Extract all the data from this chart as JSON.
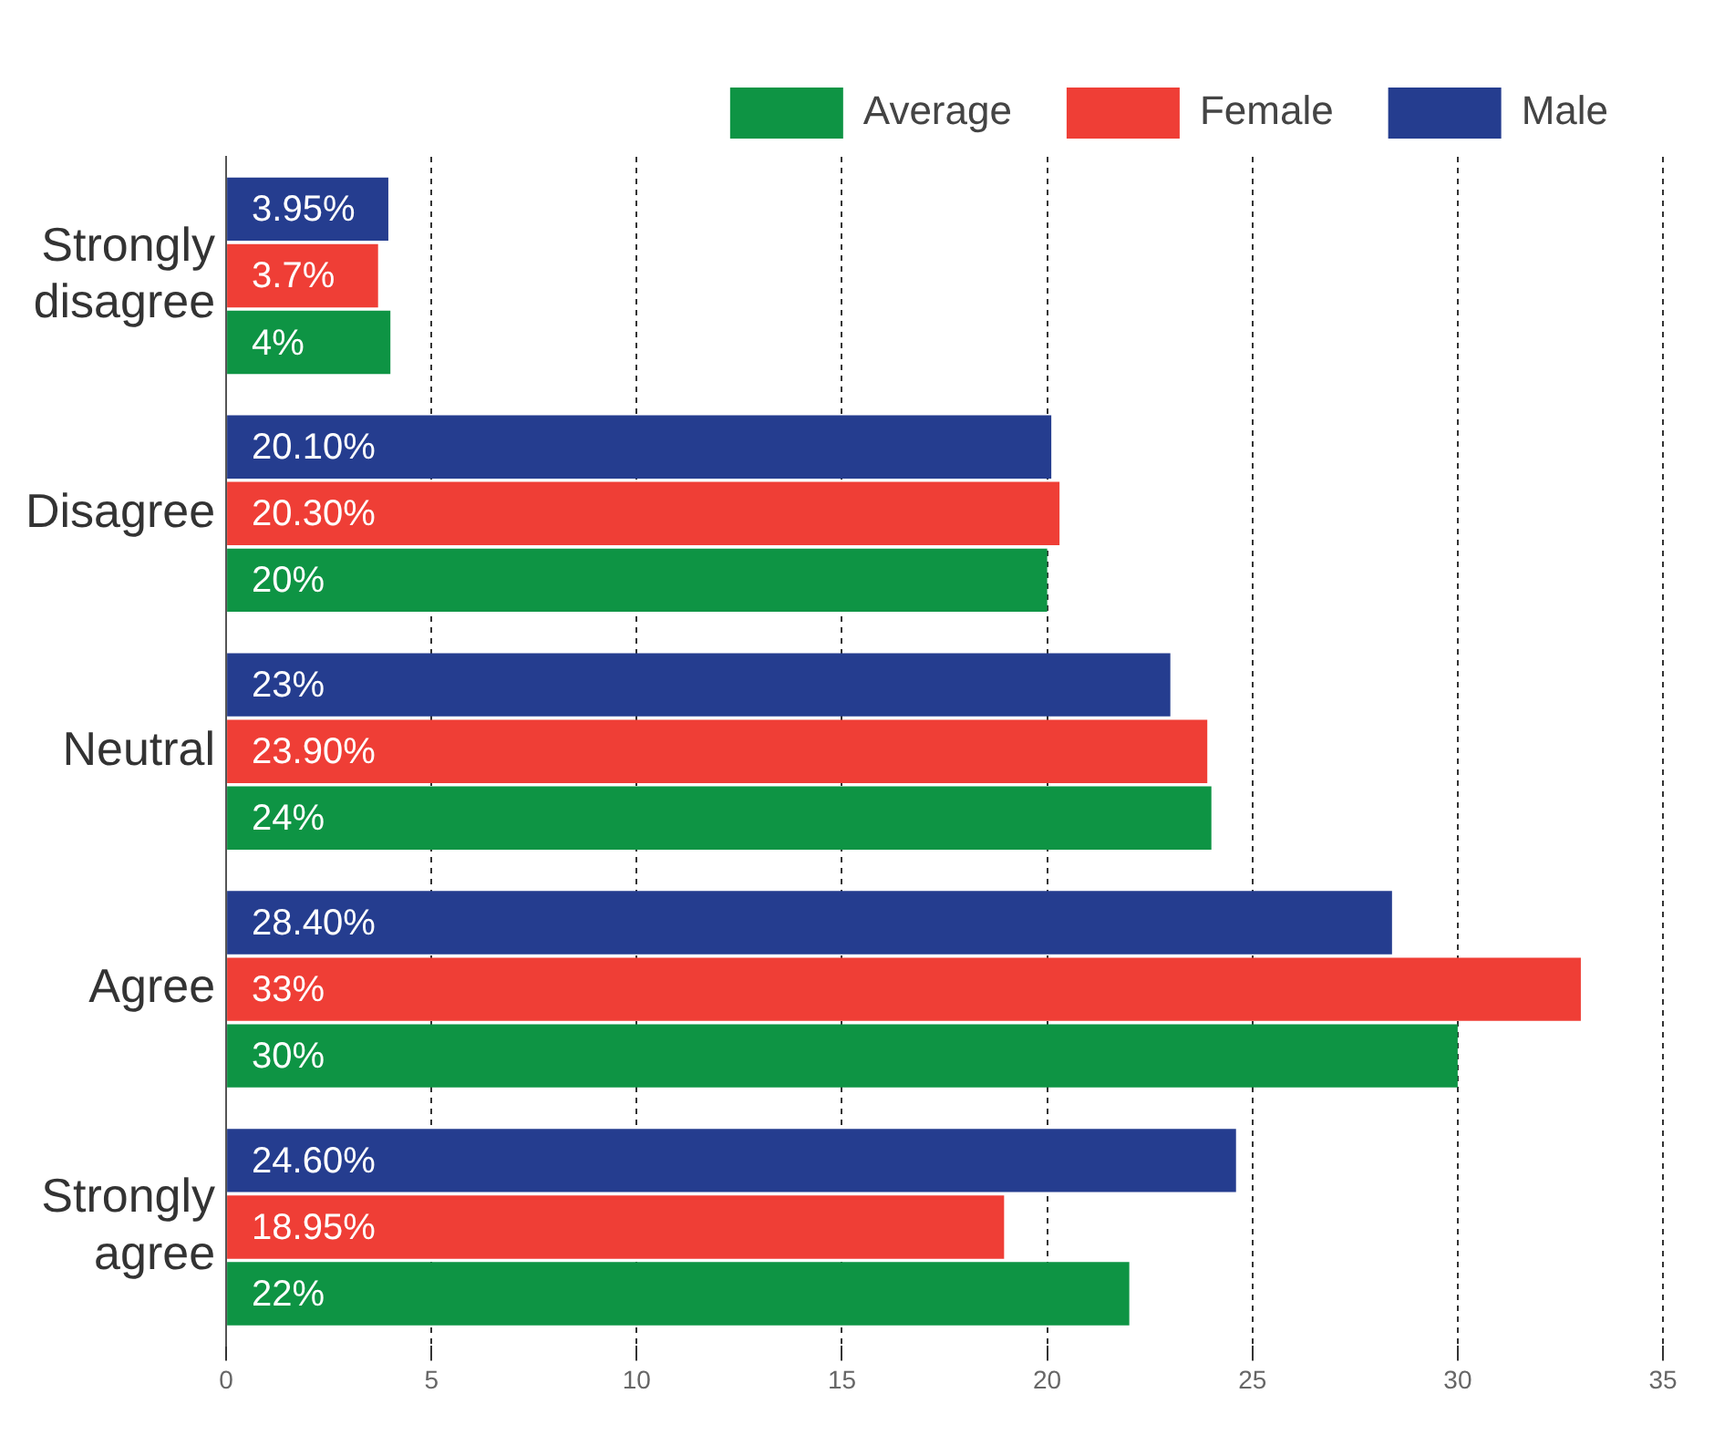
{
  "chart_data": {
    "type": "bar",
    "orientation": "horizontal",
    "categories": [
      "Strongly disagree",
      "Disagree",
      "Neutral",
      "Agree",
      "Strongly agree"
    ],
    "series": [
      {
        "name": "Male",
        "color": "#253d8f",
        "values": [
          3.95,
          20.1,
          23,
          28.4,
          24.6
        ],
        "value_labels": [
          "3.95%",
          "20.10%",
          "23%",
          "28.40%",
          "24.60%"
        ]
      },
      {
        "name": "Female",
        "color": "#ef3e36",
        "values": [
          3.7,
          20.3,
          23.9,
          33,
          18.95
        ],
        "value_labels": [
          "3.7%",
          "20.30%",
          "23.90%",
          "33%",
          "18.95%"
        ]
      },
      {
        "name": "Average",
        "color": "#0e9444",
        "values": [
          4,
          20,
          24,
          30,
          22
        ],
        "value_labels": [
          "4%",
          "20%",
          "24%",
          "30%",
          "22%"
        ]
      }
    ],
    "xlim": [
      0,
      35
    ],
    "xticks": [
      0,
      5,
      10,
      15,
      20,
      25,
      30,
      35
    ],
    "grid": "x",
    "legend": "top right"
  }
}
